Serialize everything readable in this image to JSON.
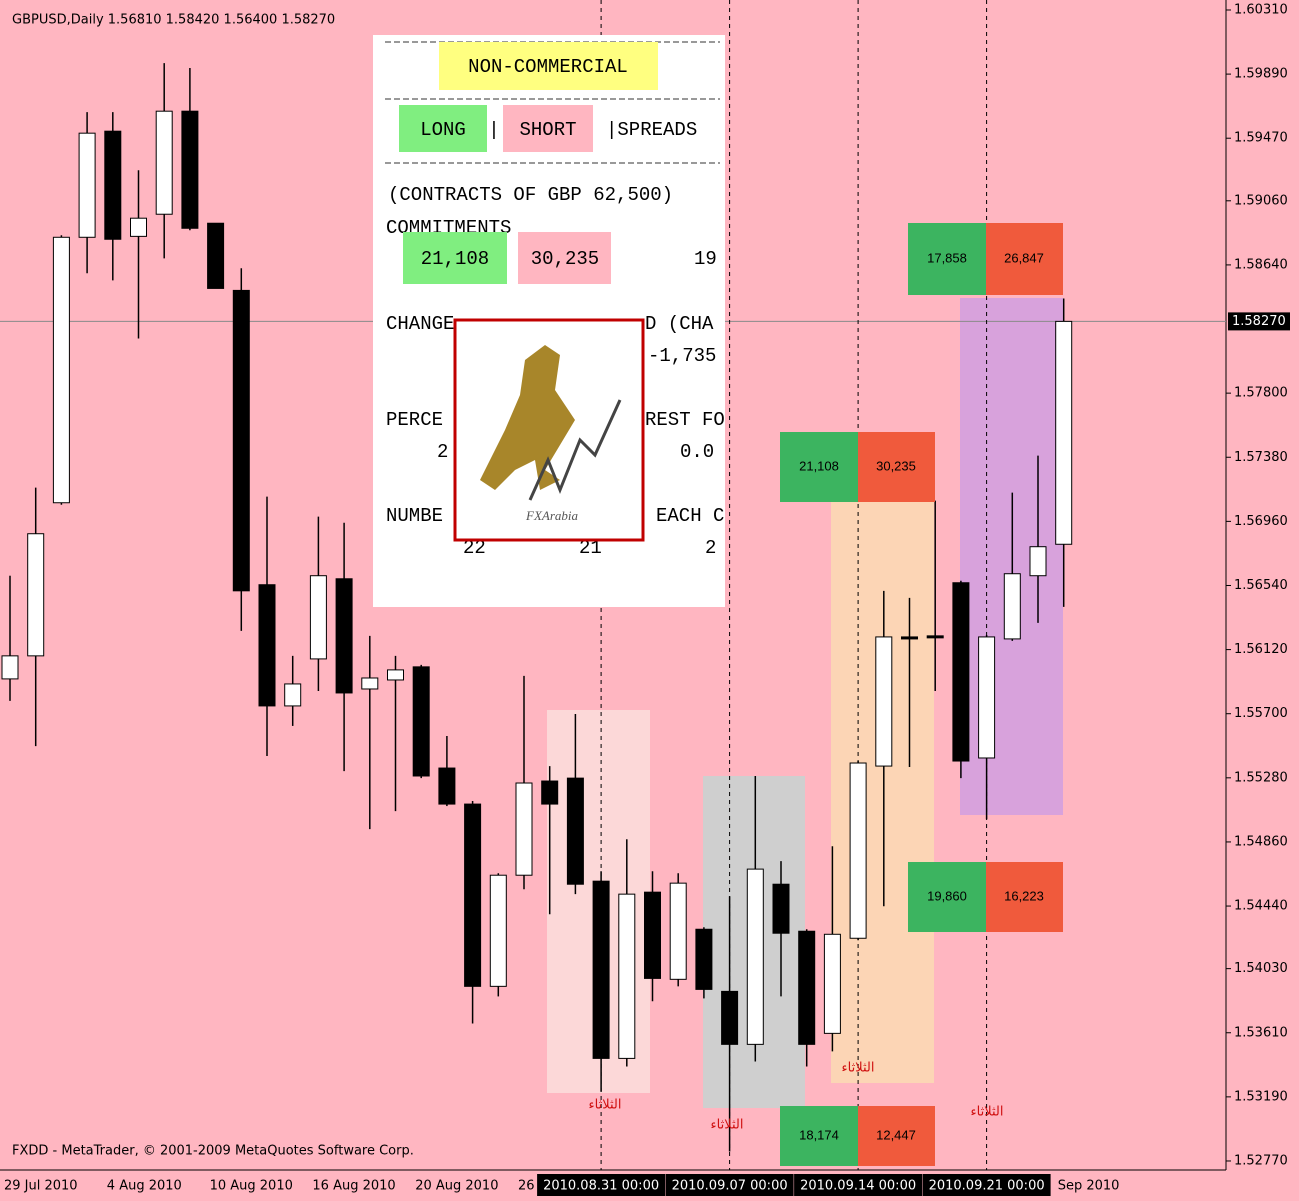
{
  "chart_data": {
    "type": "candlestick",
    "title": "GBPUSD,Daily  1.56810 1.58420 1.56400 1.58270",
    "footer": "FXDD - MetaTrader, © 2001-2009 MetaQuotes Software Corp.",
    "categories": [
      "29 Jul 2010",
      null,
      null,
      null,
      "4 Aug 2010",
      null,
      null,
      null,
      "10 Aug 2010",
      null,
      null,
      null,
      "16 Aug 2010",
      null,
      null,
      null,
      "20 Aug 2010",
      null,
      null,
      null,
      "26",
      null,
      null,
      null,
      null,
      null,
      null,
      null,
      null,
      null,
      null,
      null,
      null,
      null,
      null,
      null,
      null,
      null,
      null,
      null,
      null,
      "Sep 2010"
    ],
    "open": [
      1.55928,
      1.56079,
      1.57082,
      1.58821,
      1.59516,
      1.58827,
      1.58972,
      1.59647,
      1.58913,
      1.58473,
      1.56545,
      1.55751,
      1.56059,
      1.56584,
      1.55862,
      1.55921,
      1.56007,
      1.55344,
      1.55108,
      1.53914,
      1.54642,
      1.55259,
      1.55278,
      1.54603,
      1.53442,
      1.54531,
      1.5396,
      1.54288,
      1.53881,
      1.53534,
      1.54583,
      1.54275,
      1.53606,
      1.54229,
      1.55357,
      1.56203,
      1.5621,
      1.56558,
      1.5541,
      1.5619,
      1.56604,
      1.5681
    ],
    "high": [
      1.56604,
      1.57181,
      1.58834,
      1.59641,
      1.59641,
      1.5926,
      1.59962,
      1.5993,
      1.58913,
      1.58618,
      1.57122,
      1.56079,
      1.56991,
      1.56951,
      1.5621,
      1.56079,
      1.5602,
      1.55554,
      1.55128,
      1.54655,
      1.55948,
      1.55357,
      1.55698,
      1.54668,
      1.54878,
      1.54668,
      1.54655,
      1.54301,
      1.54504,
      1.55292,
      1.54734,
      1.54288,
      1.54832,
      1.5539,
      1.56505,
      1.56459,
      1.57096,
      1.56571,
      1.56216,
      1.57148,
      1.57391,
      1.5842
    ],
    "low": [
      1.55784,
      1.55488,
      1.57069,
      1.58585,
      1.58539,
      1.58158,
      1.58683,
      1.58867,
      1.58486,
      1.56243,
      1.55423,
      1.5562,
      1.55849,
      1.55324,
      1.54944,
      1.55062,
      1.55278,
      1.55095,
      1.53671,
      1.53848,
      1.5455,
      1.54386,
      1.54518,
      1.53225,
      1.53389,
      1.53816,
      1.53914,
      1.53835,
      1.52832,
      1.53422,
      1.53848,
      1.53389,
      1.53488,
      1.54216,
      1.54439,
      1.55351,
      1.55849,
      1.55278,
      1.55009,
      1.56177,
      1.56295,
      1.564
    ],
    "close": [
      1.56079,
      1.56879,
      1.58821,
      1.59503,
      1.58808,
      1.58946,
      1.59647,
      1.5888,
      1.58486,
      1.56505,
      1.55751,
      1.55895,
      1.56604,
      1.55836,
      1.55934,
      1.55987,
      1.55292,
      1.55108,
      1.53914,
      1.54642,
      1.55246,
      1.55108,
      1.54583,
      1.53442,
      1.54518,
      1.53966,
      1.5459,
      1.53894,
      1.53534,
      1.54682,
      1.54262,
      1.53534,
      1.54255,
      1.55377,
      1.56203,
      1.5619,
      1.56197,
      1.5539,
      1.56203,
      1.56617,
      1.56794,
      1.5827
    ],
    "ylim": [
      1.52724,
      1.60323
    ],
    "yticks": [
      {
        "value": 1.6031,
        "label": "1.60310"
      },
      {
        "value": 1.5989,
        "label": "1.59890"
      },
      {
        "value": 1.5947,
        "label": "1.59470"
      },
      {
        "value": 1.5906,
        "label": "1.59060"
      },
      {
        "value": 1.5864,
        "label": "1.58640"
      },
      {
        "value": 1.578,
        "label": "1.57800"
      },
      {
        "value": 1.5738,
        "label": "1.57380"
      },
      {
        "value": 1.5696,
        "label": "1.56960"
      },
      {
        "value": 1.5654,
        "label": "1.56540"
      },
      {
        "value": 1.5612,
        "label": "1.56120"
      },
      {
        "value": 1.557,
        "label": "1.55700"
      },
      {
        "value": 1.5528,
        "label": "1.55280"
      },
      {
        "value": 1.5486,
        "label": "1.54860"
      },
      {
        "value": 1.5444,
        "label": "1.54440"
      },
      {
        "value": 1.5403,
        "label": "1.54030"
      },
      {
        "value": 1.5361,
        "label": "1.53610"
      },
      {
        "value": 1.5319,
        "label": "1.53190"
      },
      {
        "value": 1.5277,
        "label": "1.52770"
      }
    ],
    "current_price": {
      "value": 1.5827,
      "label": "1.58270"
    },
    "vertical_lines": [
      {
        "label": "2010.08.31 00:00",
        "candle": 23
      },
      {
        "label": "2010.09.07 00:00",
        "candle": 28
      },
      {
        "label": "2010.09.14 00:00",
        "candle": 33
      },
      {
        "label": "2010.09.21 00:00",
        "candle": 38
      }
    ],
    "bull_color": "#ffffff",
    "bear_color": "#000000",
    "background": "#ffb6c1"
  },
  "annotations": {
    "boxes": [
      [
        "17,858",
        "26,847"
      ],
      [
        "21,108",
        "30,235"
      ],
      [
        "19,860",
        "16,223"
      ],
      [
        "18,174",
        "12,447"
      ]
    ],
    "day_label": "الثلاثاء"
  },
  "cot_panel": {
    "title": "NON-COMMERCIAL",
    "long": "LONG",
    "sep": "|",
    "short": "SHORT",
    "spreads": "|SPREADS",
    "contracts": "(CONTRACTS OF GBP 62,500)",
    "commitments": "COMMITMENTS",
    "long_value": "21,108",
    "short_value": "30,235",
    "spreads_value": "19",
    "fragments": [
      "CHANGE",
      "D (CHA",
      "-1,735",
      "PERCE",
      "REST FO",
      "2",
      "0.0",
      "NUMBE",
      "EACH C",
      "22",
      "21",
      "2"
    ],
    "logo": "FXArabia"
  }
}
